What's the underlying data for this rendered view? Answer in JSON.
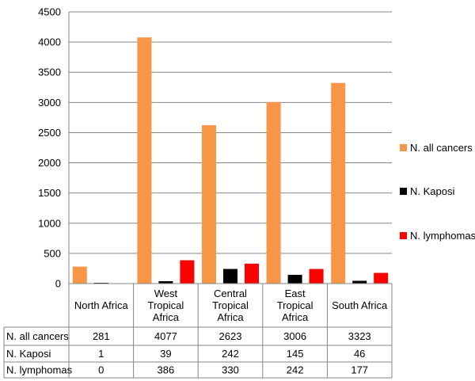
{
  "chart_data": {
    "type": "bar",
    "categories": [
      [
        "North Africa"
      ],
      [
        "West",
        "Tropical",
        "Africa"
      ],
      [
        "Central",
        "Tropical",
        "Africa"
      ],
      [
        "East",
        "Tropical",
        "Africa"
      ],
      [
        "South Africa"
      ]
    ],
    "series": [
      {
        "name": "N. all cancers",
        "color": "#F79646",
        "values": [
          281,
          4077,
          2623,
          3006,
          3323
        ]
      },
      {
        "name": "N. Kaposi",
        "color": "#000000",
        "values": [
          1,
          39,
          242,
          145,
          46
        ]
      },
      {
        "name": "N. lymphomas",
        "color": "#FF0000",
        "values": [
          0,
          386,
          330,
          242,
          177
        ]
      }
    ],
    "ylim": [
      0,
      4500
    ],
    "yticks": [
      0,
      500,
      1000,
      1500,
      2000,
      2500,
      3000,
      3500,
      4000,
      4500
    ],
    "grid": true,
    "legend_position": "right",
    "data_table": true
  }
}
